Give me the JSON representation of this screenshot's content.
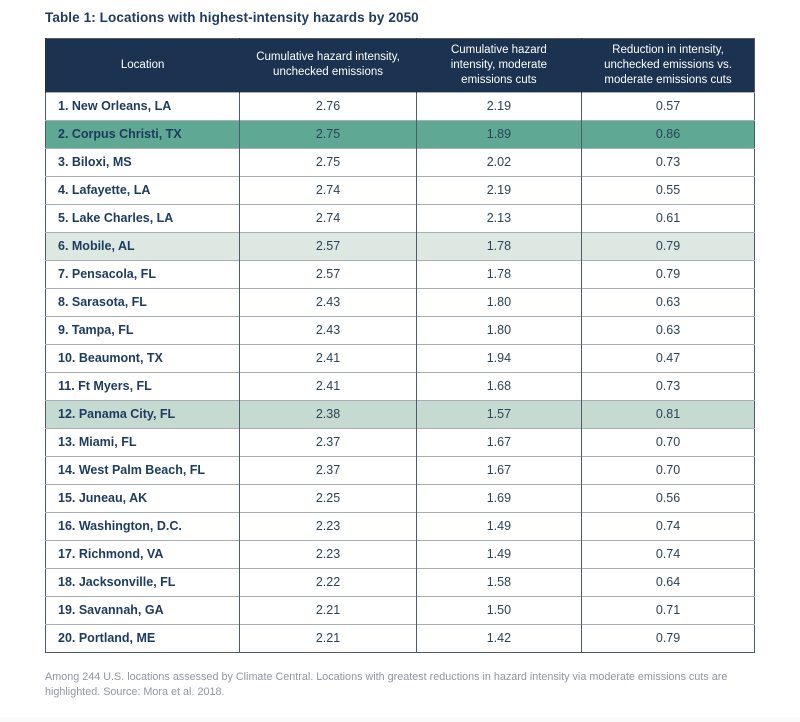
{
  "colors": {
    "header_bg": "#1b3351",
    "header_text": "#ffffff",
    "title_text": "#1d3a5f",
    "location_text": "#1d3a5f",
    "value_text": "#2c4257",
    "grid_dark": "#505b66",
    "grid_light": "#a9aeb6",
    "highlight_strong": "#5fa893",
    "highlight_medium": "#c5dbd1",
    "highlight_light": "#dde8e2",
    "footnote_text": "#8e96a4"
  },
  "chart_data": {
    "type": "table",
    "title": "Table 1: Locations with highest-intensity hazards by 2050",
    "columns": [
      "Location",
      "Cumulative hazard intensity, unchecked emissions",
      "Cumulative hazard intensity, moderate emissions cuts",
      "Reduction in intensity, unchecked emissions vs. moderate emissions cuts"
    ],
    "rows": [
      {
        "location": "1. New Orleans, LA",
        "unchecked": "2.76",
        "moderate": "2.19",
        "reduction": "0.57",
        "highlight": "none"
      },
      {
        "location": "2. Corpus Christi, TX",
        "unchecked": "2.75",
        "moderate": "1.89",
        "reduction": "0.86",
        "highlight": "strong"
      },
      {
        "location": "3. Biloxi, MS",
        "unchecked": "2.75",
        "moderate": "2.02",
        "reduction": "0.73",
        "highlight": "none"
      },
      {
        "location": "4. Lafayette, LA",
        "unchecked": "2.74",
        "moderate": "2.19",
        "reduction": "0.55",
        "highlight": "none"
      },
      {
        "location": "5. Lake Charles, LA",
        "unchecked": "2.74",
        "moderate": "2.13",
        "reduction": "0.61",
        "highlight": "none"
      },
      {
        "location": "6. Mobile, AL",
        "unchecked": "2.57",
        "moderate": "1.78",
        "reduction": "0.79",
        "highlight": "light"
      },
      {
        "location": "7. Pensacola, FL",
        "unchecked": "2.57",
        "moderate": "1.78",
        "reduction": "0.79",
        "highlight": "none"
      },
      {
        "location": "8. Sarasota, FL",
        "unchecked": "2.43",
        "moderate": "1.80",
        "reduction": "0.63",
        "highlight": "none"
      },
      {
        "location": "9. Tampa, FL",
        "unchecked": "2.43",
        "moderate": "1.80",
        "reduction": "0.63",
        "highlight": "none"
      },
      {
        "location": "10. Beaumont, TX",
        "unchecked": "2.41",
        "moderate": "1.94",
        "reduction": "0.47",
        "highlight": "none"
      },
      {
        "location": "11. Ft Myers, FL",
        "unchecked": "2.41",
        "moderate": "1.68",
        "reduction": "0.73",
        "highlight": "none"
      },
      {
        "location": "12. Panama City, FL",
        "unchecked": "2.38",
        "moderate": "1.57",
        "reduction": "0.81",
        "highlight": "medium"
      },
      {
        "location": "13. Miami, FL",
        "unchecked": "2.37",
        "moderate": "1.67",
        "reduction": "0.70",
        "highlight": "none"
      },
      {
        "location": "14. West Palm Beach, FL",
        "unchecked": "2.37",
        "moderate": "1.67",
        "reduction": "0.70",
        "highlight": "none"
      },
      {
        "location": "15. Juneau, AK",
        "unchecked": "2.25",
        "moderate": "1.69",
        "reduction": "0.56",
        "highlight": "none"
      },
      {
        "location": "16. Washington, D.C.",
        "unchecked": "2.23",
        "moderate": "1.49",
        "reduction": "0.74",
        "highlight": "none"
      },
      {
        "location": "17. Richmond, VA",
        "unchecked": "2.23",
        "moderate": "1.49",
        "reduction": "0.74",
        "highlight": "none"
      },
      {
        "location": "18. Jacksonville, FL",
        "unchecked": "2.22",
        "moderate": "1.58",
        "reduction": "0.64",
        "highlight": "none"
      },
      {
        "location": "19. Savannah, GA",
        "unchecked": "2.21",
        "moderate": "1.50",
        "reduction": "0.71",
        "highlight": "none"
      },
      {
        "location": "20. Portland, ME",
        "unchecked": "2.21",
        "moderate": "1.42",
        "reduction": "0.79",
        "highlight": "none"
      }
    ],
    "source_note": "Among 244 U.S. locations assessed by Climate Central. Locations with greatest reductions in hazard intensity via moderate emissions cuts are highlighted. Source: Mora et al. 2018."
  }
}
